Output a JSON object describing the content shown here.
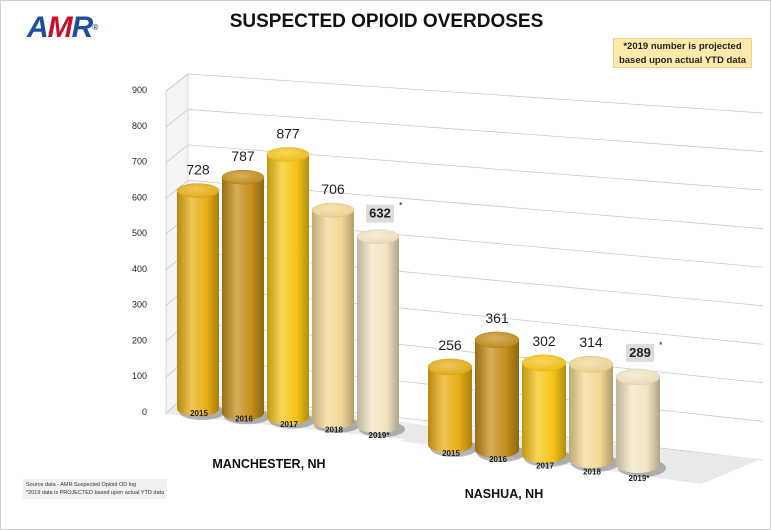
{
  "logo": {
    "a": "A",
    "m": "M",
    "r": "R",
    "reg": "®"
  },
  "title": "SUSPECTED OPIOID OVERDOSES",
  "note": {
    "line1": "*2019 number is projected",
    "line2": "based upon actual YTD data"
  },
  "source": {
    "line1": "Source data - AMR Suspected Opioid OD log",
    "line2": "*2019 data is PROJECTED based upon actual YTD data"
  },
  "chart_data": {
    "type": "bar",
    "title": "SUSPECTED OPIOID OVERDOSES",
    "ylim": [
      0,
      900
    ],
    "yticks": [
      0,
      100,
      200,
      300,
      400,
      500,
      600,
      700,
      800,
      900
    ],
    "grid": true,
    "groups": [
      {
        "name": "MANCHESTER, NH",
        "categories": [
          "2015",
          "2016",
          "2017",
          "2018",
          "2019*"
        ],
        "values": [
          728,
          787,
          877,
          706,
          632
        ],
        "labels": [
          "728",
          "787",
          "877",
          "706",
          "632"
        ],
        "projected": [
          false,
          false,
          false,
          false,
          true
        ]
      },
      {
        "name": "NASHUA, NH",
        "categories": [
          "2015",
          "2016",
          "2017",
          "2018",
          "2019*"
        ],
        "values": [
          256,
          361,
          302,
          314,
          289
        ],
        "labels": [
          "256",
          "361",
          "302",
          "314",
          "289"
        ],
        "projected": [
          false,
          false,
          false,
          false,
          true
        ]
      }
    ],
    "asterisk": "*",
    "colors": [
      "#e9ae14",
      "#c58d1a",
      "#f6c417",
      "#f4d895",
      "#f3e4c3"
    ]
  }
}
